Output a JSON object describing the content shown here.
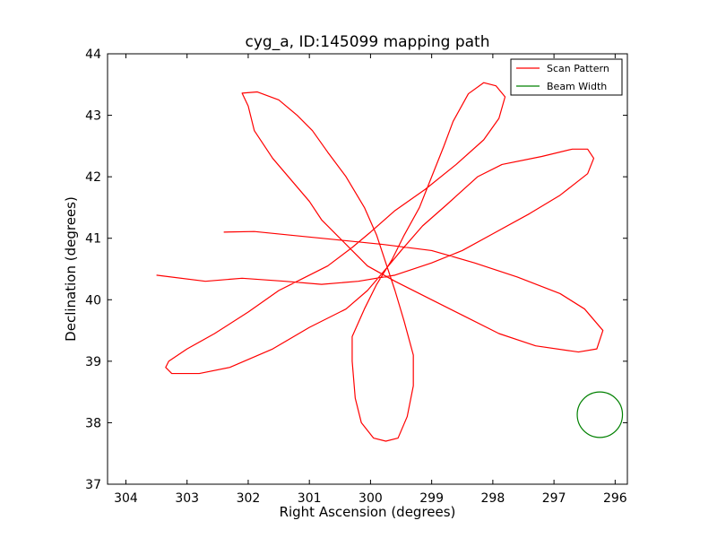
{
  "chart_data": {
    "type": "line",
    "title": "cyg_a, ID:145099 mapping path",
    "xlabel": "Right Ascension (degrees)",
    "ylabel": "Declination (degrees)",
    "xlim": [
      304.3,
      295.8
    ],
    "ylim": [
      37,
      44
    ],
    "xticks": [
      304,
      303,
      302,
      301,
      300,
      299,
      298,
      297,
      296
    ],
    "yticks": [
      37,
      38,
      39,
      40,
      41,
      42,
      43,
      44
    ],
    "legend_position": "top-right",
    "series": [
      {
        "name": "Scan Pattern",
        "color": "#ff0000",
        "points": [
          [
            302.4,
            41.1
          ],
          [
            301.9,
            41.11
          ],
          [
            301.3,
            41.05
          ],
          [
            300.6,
            40.98
          ],
          [
            299.8,
            40.9
          ],
          [
            299.0,
            40.8
          ],
          [
            298.3,
            40.6
          ],
          [
            297.6,
            40.37
          ],
          [
            296.9,
            40.1
          ],
          [
            296.5,
            39.85
          ],
          [
            296.2,
            39.5
          ],
          [
            296.3,
            39.2
          ],
          [
            296.6,
            39.15
          ],
          [
            297.3,
            39.25
          ],
          [
            297.9,
            39.45
          ],
          [
            298.5,
            39.75
          ],
          [
            299.0,
            40.0
          ],
          [
            299.6,
            40.3
          ],
          [
            300.05,
            40.55
          ],
          [
            300.3,
            40.8
          ],
          [
            300.55,
            41.05
          ],
          [
            300.8,
            41.3
          ],
          [
            301.0,
            41.6
          ],
          [
            301.3,
            41.95
          ],
          [
            301.6,
            42.3
          ],
          [
            301.9,
            42.75
          ],
          [
            302.0,
            43.15
          ],
          [
            302.1,
            43.36
          ],
          [
            301.85,
            43.38
          ],
          [
            301.5,
            43.25
          ],
          [
            301.2,
            43.0
          ],
          [
            300.95,
            42.75
          ],
          [
            300.7,
            42.4
          ],
          [
            300.4,
            42.0
          ],
          [
            300.1,
            41.5
          ],
          [
            299.9,
            41.05
          ],
          [
            299.75,
            40.6
          ],
          [
            299.6,
            40.15
          ],
          [
            299.45,
            39.65
          ],
          [
            299.3,
            39.1
          ],
          [
            299.3,
            38.6
          ],
          [
            299.4,
            38.1
          ],
          [
            299.55,
            37.75
          ],
          [
            299.75,
            37.7
          ],
          [
            299.95,
            37.75
          ],
          [
            300.15,
            38.0
          ],
          [
            300.25,
            38.4
          ],
          [
            300.3,
            39.0
          ],
          [
            300.3,
            39.4
          ],
          [
            300.1,
            39.85
          ],
          [
            299.9,
            40.25
          ],
          [
            299.65,
            40.65
          ],
          [
            299.45,
            41.05
          ],
          [
            299.2,
            41.5
          ],
          [
            299.0,
            42.0
          ],
          [
            298.8,
            42.5
          ],
          [
            298.65,
            42.9
          ],
          [
            298.4,
            43.35
          ],
          [
            298.15,
            43.53
          ],
          [
            297.95,
            43.48
          ],
          [
            297.8,
            43.3
          ],
          [
            297.9,
            42.95
          ],
          [
            298.15,
            42.6
          ],
          [
            298.6,
            42.2
          ],
          [
            299.1,
            41.8
          ],
          [
            299.6,
            41.45
          ],
          [
            300.0,
            41.1
          ],
          [
            300.3,
            40.85
          ],
          [
            300.7,
            40.55
          ],
          [
            301.1,
            40.35
          ],
          [
            301.5,
            40.15
          ],
          [
            302.0,
            39.8
          ],
          [
            302.55,
            39.45
          ],
          [
            303.0,
            39.2
          ],
          [
            303.3,
            39.0
          ],
          [
            303.35,
            38.9
          ],
          [
            303.25,
            38.8
          ],
          [
            302.8,
            38.8
          ],
          [
            302.3,
            38.9
          ],
          [
            301.6,
            39.2
          ],
          [
            301.0,
            39.55
          ],
          [
            300.4,
            39.85
          ],
          [
            300.05,
            40.15
          ],
          [
            299.75,
            40.5
          ],
          [
            299.5,
            40.8
          ],
          [
            299.15,
            41.2
          ],
          [
            298.75,
            41.55
          ],
          [
            298.25,
            42.0
          ],
          [
            297.85,
            42.2
          ],
          [
            297.2,
            42.33
          ],
          [
            296.7,
            42.45
          ],
          [
            296.45,
            42.45
          ],
          [
            296.35,
            42.3
          ],
          [
            296.45,
            42.05
          ],
          [
            296.9,
            41.7
          ],
          [
            297.4,
            41.4
          ],
          [
            297.95,
            41.1
          ],
          [
            298.5,
            40.8
          ],
          [
            299.0,
            40.6
          ],
          [
            299.6,
            40.4
          ],
          [
            300.2,
            40.3
          ],
          [
            300.8,
            40.25
          ],
          [
            301.4,
            40.3
          ],
          [
            302.1,
            40.35
          ],
          [
            302.7,
            40.3
          ],
          [
            303.5,
            40.4
          ]
        ]
      },
      {
        "name": "Beam Width",
        "color": "#008000",
        "center": [
          296.25,
          38.13
        ],
        "radius_ra": 0.37,
        "radius_dec": 0.37
      }
    ]
  }
}
